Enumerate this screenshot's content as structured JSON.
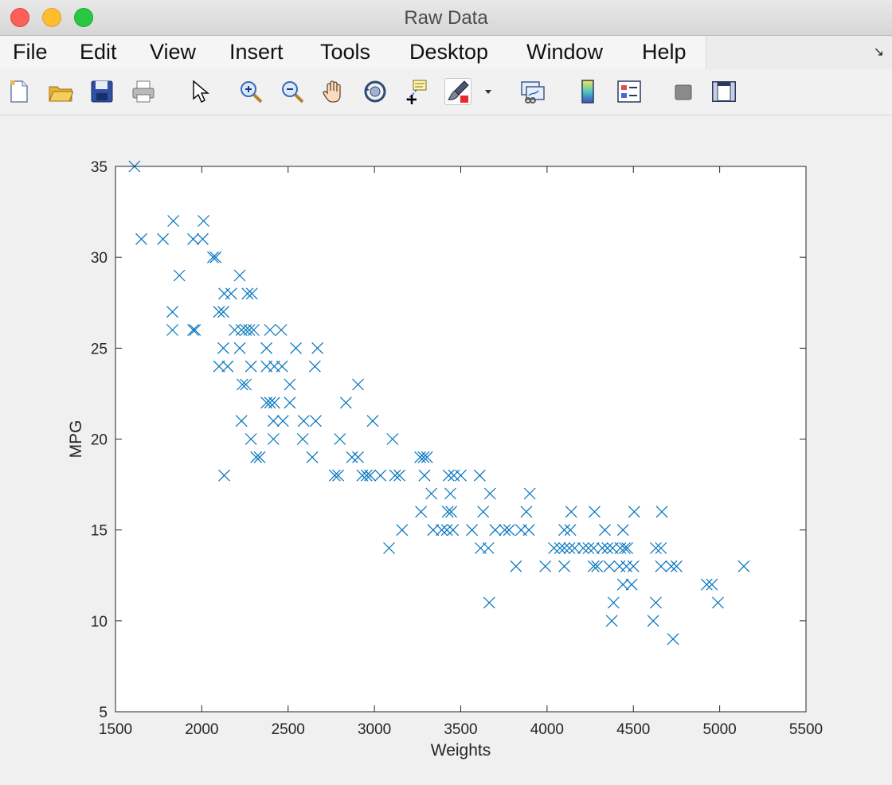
{
  "window": {
    "title": "Raw Data"
  },
  "menu": [
    "File",
    "Edit",
    "View",
    "Insert",
    "Tools",
    "Desktop",
    "Window",
    "Help"
  ],
  "toolbar": [
    "new-figure-icon",
    "open-file-icon",
    "save-icon",
    "print-icon",
    "pointer-icon",
    "zoom-in-icon",
    "zoom-out-icon",
    "pan-icon",
    "rotate-3d-icon",
    "data-cursor-icon",
    "brush-icon",
    "brush-dropdown-icon",
    "link-plot-icon",
    "colorbar-icon",
    "legend-icon",
    "hide-plot-tools-icon",
    "show-plot-tools-icon"
  ],
  "colors": {
    "marker": "#0072bd",
    "axes": "#262626"
  },
  "chart_data": {
    "type": "scatter",
    "marker": "x",
    "title": "",
    "xlabel": "Weights",
    "ylabel": "MPG",
    "xlim": [
      1500,
      5500
    ],
    "ylim": [
      5,
      35
    ],
    "xticks": [
      1500,
      2000,
      2500,
      3000,
      3500,
      4000,
      4500,
      5000,
      5500
    ],
    "yticks": [
      5,
      10,
      15,
      20,
      25,
      30,
      35
    ],
    "points": [
      [
        1610,
        35
      ],
      [
        1650,
        31
      ],
      [
        1775,
        31
      ],
      [
        1835,
        32
      ],
      [
        1950,
        31
      ],
      [
        2005,
        31
      ],
      [
        2010,
        32
      ],
      [
        2065,
        30
      ],
      [
        2080,
        30
      ],
      [
        1870,
        29
      ],
      [
        2220,
        29
      ],
      [
        1830,
        27
      ],
      [
        2100,
        27
      ],
      [
        2125,
        27
      ],
      [
        1830,
        26
      ],
      [
        1950,
        26
      ],
      [
        1960,
        26
      ],
      [
        2190,
        26
      ],
      [
        2230,
        26
      ],
      [
        2255,
        26
      ],
      [
        2275,
        26
      ],
      [
        2300,
        26
      ],
      [
        2395,
        26
      ],
      [
        2460,
        26
      ],
      [
        2130,
        28
      ],
      [
        2170,
        28
      ],
      [
        2265,
        28
      ],
      [
        2290,
        28
      ],
      [
        2125,
        25
      ],
      [
        2220,
        25
      ],
      [
        2375,
        25
      ],
      [
        2545,
        25
      ],
      [
        2670,
        25
      ],
      [
        2100,
        24
      ],
      [
        2150,
        24
      ],
      [
        2285,
        24
      ],
      [
        2375,
        24
      ],
      [
        2420,
        24
      ],
      [
        2465,
        24
      ],
      [
        2655,
        24
      ],
      [
        2235,
        23
      ],
      [
        2255,
        23
      ],
      [
        2510,
        23
      ],
      [
        2905,
        23
      ],
      [
        2375,
        22
      ],
      [
        2395,
        22
      ],
      [
        2420,
        22
      ],
      [
        2510,
        22
      ],
      [
        2835,
        22
      ],
      [
        2230,
        21
      ],
      [
        2415,
        21
      ],
      [
        2470,
        21
      ],
      [
        2590,
        21
      ],
      [
        2660,
        21
      ],
      [
        2990,
        21
      ],
      [
        2285,
        20
      ],
      [
        2415,
        20
      ],
      [
        2585,
        20
      ],
      [
        2800,
        20
      ],
      [
        3105,
        20
      ],
      [
        2315,
        19
      ],
      [
        2335,
        19
      ],
      [
        2640,
        19
      ],
      [
        2870,
        19
      ],
      [
        2905,
        19
      ],
      [
        3265,
        19
      ],
      [
        3285,
        19
      ],
      [
        3305,
        19
      ],
      [
        2130,
        18
      ],
      [
        2770,
        18
      ],
      [
        2790,
        18
      ],
      [
        2930,
        18
      ],
      [
        2955,
        18
      ],
      [
        2975,
        18
      ],
      [
        3035,
        18
      ],
      [
        3120,
        18
      ],
      [
        3145,
        18
      ],
      [
        3290,
        18
      ],
      [
        3430,
        18
      ],
      [
        3460,
        18
      ],
      [
        3500,
        18
      ],
      [
        3610,
        18
      ],
      [
        3330,
        17
      ],
      [
        3440,
        17
      ],
      [
        3670,
        17
      ],
      [
        3900,
        17
      ],
      [
        3270,
        16
      ],
      [
        3425,
        16
      ],
      [
        3445,
        16
      ],
      [
        3630,
        16
      ],
      [
        3880,
        16
      ],
      [
        4140,
        16
      ],
      [
        4275,
        16
      ],
      [
        4505,
        16
      ],
      [
        4665,
        16
      ],
      [
        3160,
        15
      ],
      [
        3340,
        15
      ],
      [
        3390,
        15
      ],
      [
        3420,
        15
      ],
      [
        3455,
        15
      ],
      [
        3565,
        15
      ],
      [
        3700,
        15
      ],
      [
        3755,
        15
      ],
      [
        3780,
        15
      ],
      [
        3850,
        15
      ],
      [
        3895,
        15
      ],
      [
        4100,
        15
      ],
      [
        4135,
        15
      ],
      [
        4335,
        15
      ],
      [
        4440,
        15
      ],
      [
        3085,
        14
      ],
      [
        3615,
        14
      ],
      [
        3660,
        14
      ],
      [
        4040,
        14
      ],
      [
        4075,
        14
      ],
      [
        4100,
        14
      ],
      [
        4130,
        14
      ],
      [
        4160,
        14
      ],
      [
        4210,
        14
      ],
      [
        4240,
        14
      ],
      [
        4270,
        14
      ],
      [
        4320,
        14
      ],
      [
        4350,
        14
      ],
      [
        4380,
        14
      ],
      [
        4425,
        14
      ],
      [
        4450,
        14
      ],
      [
        4465,
        14
      ],
      [
        4630,
        14
      ],
      [
        4660,
        14
      ],
      [
        3820,
        13
      ],
      [
        3990,
        13
      ],
      [
        4100,
        13
      ],
      [
        4270,
        13
      ],
      [
        4290,
        13
      ],
      [
        4360,
        13
      ],
      [
        4420,
        13
      ],
      [
        4460,
        13
      ],
      [
        4500,
        13
      ],
      [
        4660,
        13
      ],
      [
        4720,
        13
      ],
      [
        4750,
        13
      ],
      [
        5140,
        13
      ],
      [
        4440,
        12
      ],
      [
        4490,
        12
      ],
      [
        4925,
        12
      ],
      [
        4955,
        12
      ],
      [
        3665,
        11
      ],
      [
        4385,
        11
      ],
      [
        4630,
        11
      ],
      [
        4990,
        11
      ],
      [
        4375,
        10
      ],
      [
        4615,
        10
      ],
      [
        4730,
        9
      ]
    ]
  }
}
